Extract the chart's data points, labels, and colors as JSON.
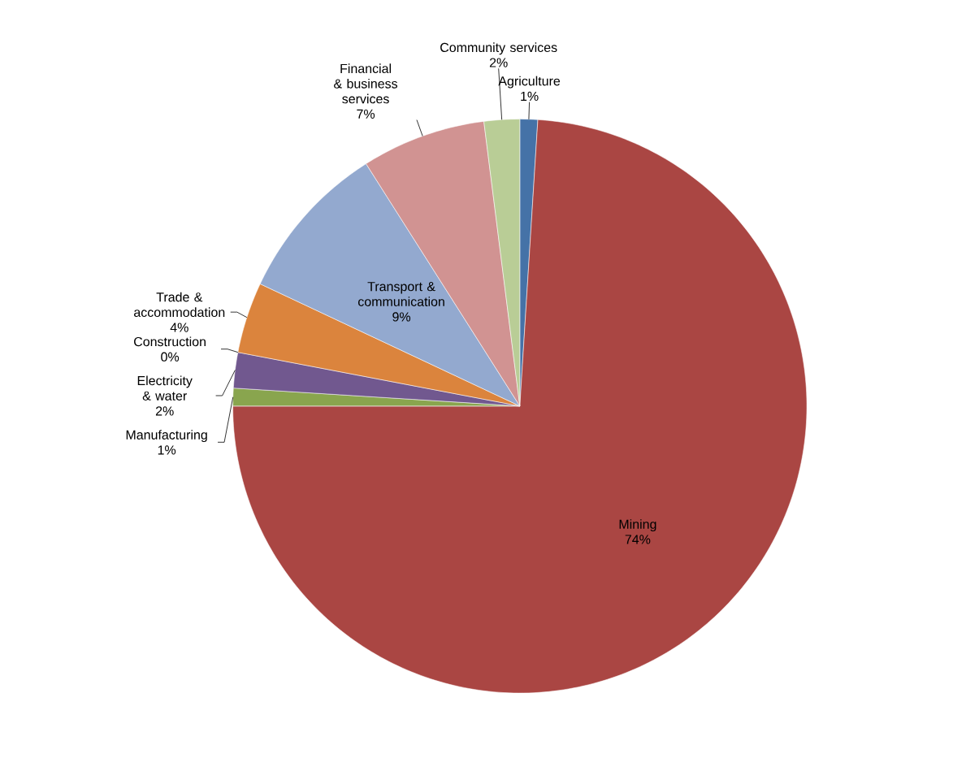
{
  "chart_data": {
    "type": "pie",
    "categories": [
      "Agriculture",
      "Mining",
      "Manufacturing",
      "Electricity & water",
      "Construction",
      "Trade & accommodation",
      "Transport & communication",
      "Financial & business services",
      "Community services"
    ],
    "values": [
      1,
      74,
      1,
      2,
      0,
      4,
      9,
      7,
      2
    ],
    "value_labels": [
      "1%",
      "74%",
      "1%",
      "2%",
      "0%",
      "4%",
      "9%",
      "7%",
      "2%"
    ],
    "colors": [
      "#4572a7",
      "#aa4643",
      "#89a54e",
      "#71588f",
      "#4198af",
      "#db843d",
      "#93a9cf",
      "#d19392",
      "#b9cd96"
    ]
  }
}
